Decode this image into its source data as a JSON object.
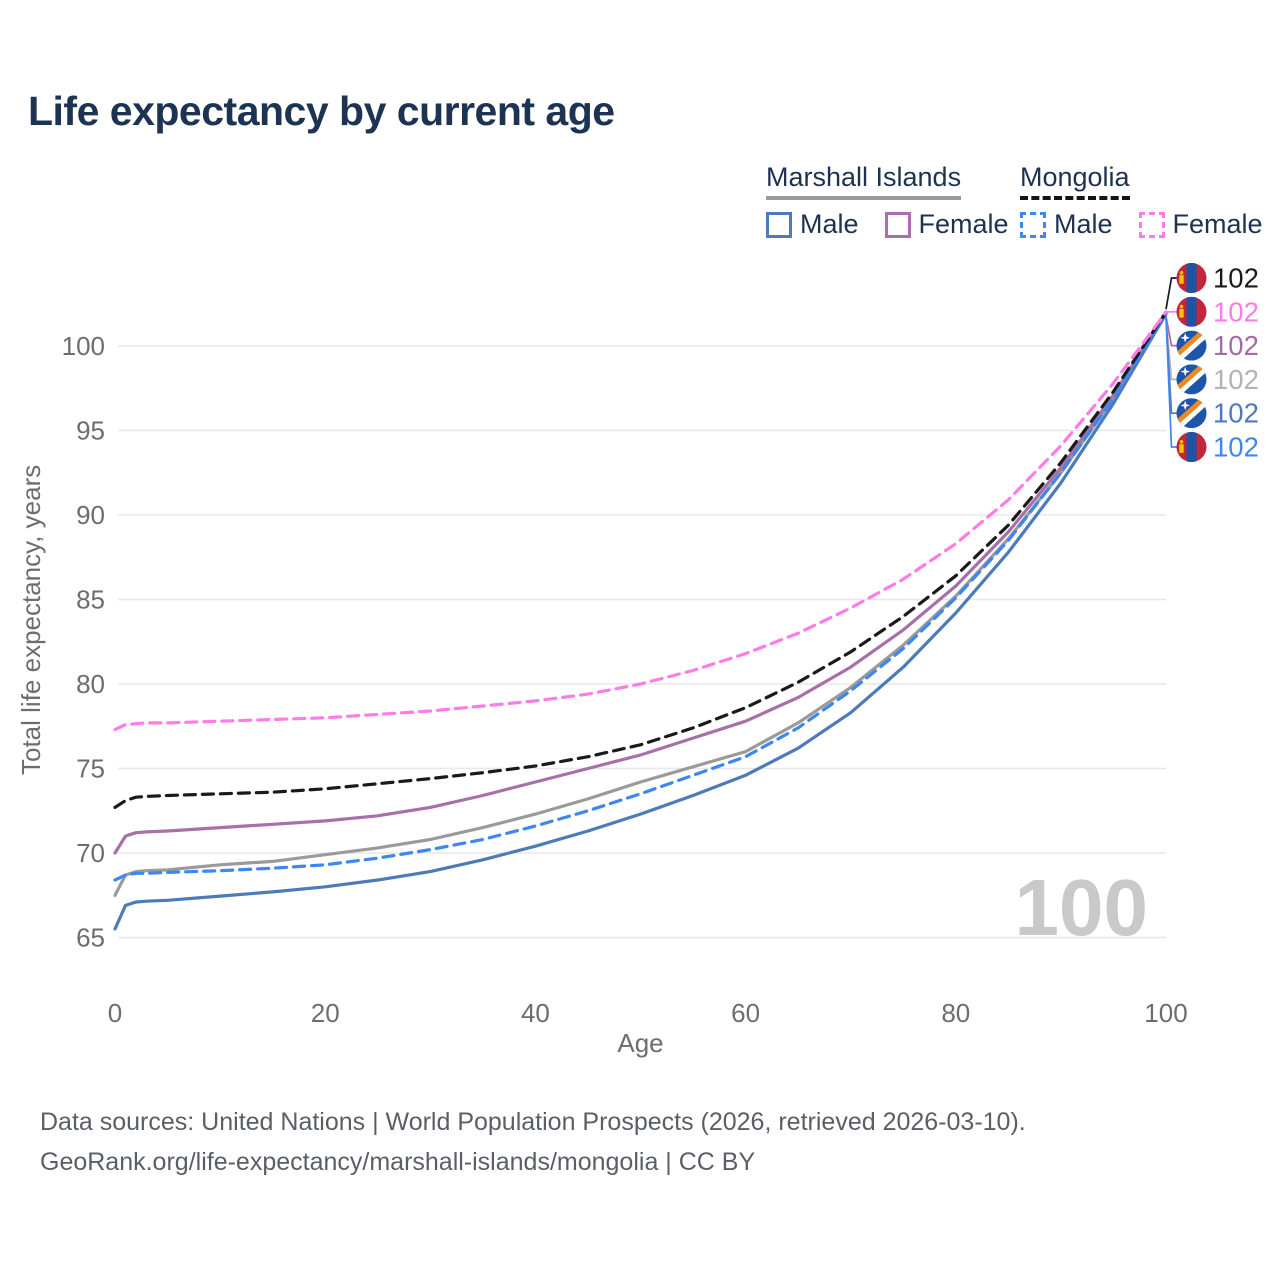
{
  "page": {
    "title": "Life expectancy by current age"
  },
  "legend": {
    "groups": [
      {
        "label": "Marshall Islands",
        "line_style": "solid",
        "line_color": "#9a9a9a",
        "items": [
          {
            "label": "Male",
            "color": "#4d7ab8",
            "dashed": false
          },
          {
            "label": "Female",
            "color": "#a86fa8",
            "dashed": false
          }
        ]
      },
      {
        "label": "Mongolia",
        "line_style": "dashed",
        "line_color": "#141414",
        "items": [
          {
            "label": "Male",
            "color": "#3e86f0",
            "dashed": true
          },
          {
            "label": "Female",
            "color": "#ff7ce6",
            "dashed": true
          }
        ]
      }
    ]
  },
  "watermark": "100",
  "footer": {
    "line1": "Data sources: United Nations | World Population Prospects (2026, retrieved 2026-03-10).",
    "line2": "GeoRank.org/life-expectancy/marshall-islands/mongolia | CC BY"
  },
  "chart_data": {
    "type": "line",
    "title": "Life expectancy by current age",
    "xlabel": "Age",
    "ylabel": "Total life expectancy, years",
    "xlim": [
      0,
      100
    ],
    "ylim": [
      63.5,
      103
    ],
    "xticks": [
      0,
      20,
      40,
      60,
      80,
      100
    ],
    "yticks": [
      65,
      70,
      75,
      80,
      85,
      90,
      95,
      100
    ],
    "grid": "horizontal",
    "legend_position": "top-right",
    "x": [
      0,
      1,
      2,
      3,
      5,
      10,
      15,
      20,
      25,
      30,
      35,
      40,
      45,
      50,
      55,
      60,
      65,
      70,
      75,
      80,
      85,
      90,
      95,
      100
    ],
    "series": [
      {
        "id": "marshall-islands-both",
        "country": "Marshall Islands",
        "sex": "both",
        "color": "#9a9a9a",
        "dash": "solid",
        "end_label": "102",
        "end_label_color": "#b3b3b3",
        "label_row": 3,
        "flag": "marshall-islands",
        "values": [
          67.5,
          68.7,
          68.9,
          68.95,
          69.0,
          69.3,
          69.5,
          69.9,
          70.3,
          70.8,
          71.5,
          72.3,
          73.2,
          74.2,
          75.1,
          76.0,
          77.7,
          79.8,
          82.3,
          85.2,
          88.6,
          92.5,
          96.9,
          101.9
        ]
      },
      {
        "id": "marshall-islands-female",
        "country": "Marshall Islands",
        "sex": "female",
        "color": "#a86fa8",
        "dash": "solid",
        "end_label": "102",
        "end_label_color": "#a56ba5",
        "label_row": 2,
        "flag": "marshall-islands",
        "values": [
          70.0,
          71.0,
          71.2,
          71.25,
          71.3,
          71.5,
          71.7,
          71.9,
          72.2,
          72.7,
          73.4,
          74.2,
          75.0,
          75.8,
          76.8,
          77.8,
          79.2,
          81.0,
          83.2,
          85.8,
          89.0,
          92.8,
          97.1,
          102.0
        ]
      },
      {
        "id": "marshall-islands-male",
        "country": "Marshall Islands",
        "sex": "male",
        "color": "#4d7ab8",
        "dash": "solid",
        "end_label": "102",
        "end_label_color": "#4d7ab8",
        "label_row": 4,
        "flag": "marshall-islands",
        "values": [
          65.5,
          66.9,
          67.1,
          67.15,
          67.2,
          67.45,
          67.7,
          68.0,
          68.4,
          68.9,
          69.6,
          70.4,
          71.3,
          72.3,
          73.4,
          74.6,
          76.2,
          78.3,
          81.0,
          84.2,
          87.8,
          91.9,
          96.6,
          101.9
        ]
      },
      {
        "id": "mongolia-male",
        "country": "Mongolia",
        "sex": "male",
        "color": "#3e86f0",
        "dash": "dashed",
        "end_label": "102",
        "end_label_color": "#3e86f0",
        "label_row": 5,
        "flag": "mongolia",
        "values": [
          68.4,
          68.7,
          68.8,
          68.8,
          68.85,
          68.95,
          69.1,
          69.3,
          69.7,
          70.2,
          70.8,
          71.6,
          72.5,
          73.5,
          74.6,
          75.7,
          77.4,
          79.6,
          82.1,
          85.1,
          88.5,
          92.5,
          96.9,
          101.9
        ]
      },
      {
        "id": "mongolia-both",
        "country": "Mongolia",
        "sex": "both",
        "color": "#1a1a1a",
        "dash": "dashed",
        "end_label": "102",
        "end_label_color": "#1a1a1a",
        "label_row": 0,
        "flag": "mongolia",
        "values": [
          72.7,
          73.1,
          73.3,
          73.35,
          73.4,
          73.5,
          73.6,
          73.8,
          74.1,
          74.4,
          74.75,
          75.15,
          75.7,
          76.4,
          77.4,
          78.6,
          80.1,
          81.9,
          84.0,
          86.4,
          89.4,
          93.1,
          97.3,
          102.0
        ]
      },
      {
        "id": "mongolia-female",
        "country": "Mongolia",
        "sex": "female",
        "color": "#ff7ce6",
        "dash": "dashed",
        "end_label": "102",
        "end_label_color": "#ff7ce6",
        "label_row": 1,
        "flag": "mongolia",
        "values": [
          77.3,
          77.6,
          77.65,
          77.7,
          77.7,
          77.8,
          77.9,
          78.0,
          78.2,
          78.4,
          78.7,
          79.0,
          79.4,
          80.0,
          80.8,
          81.8,
          83.0,
          84.5,
          86.2,
          88.3,
          90.9,
          94.1,
          97.8,
          102.0
        ]
      }
    ]
  }
}
